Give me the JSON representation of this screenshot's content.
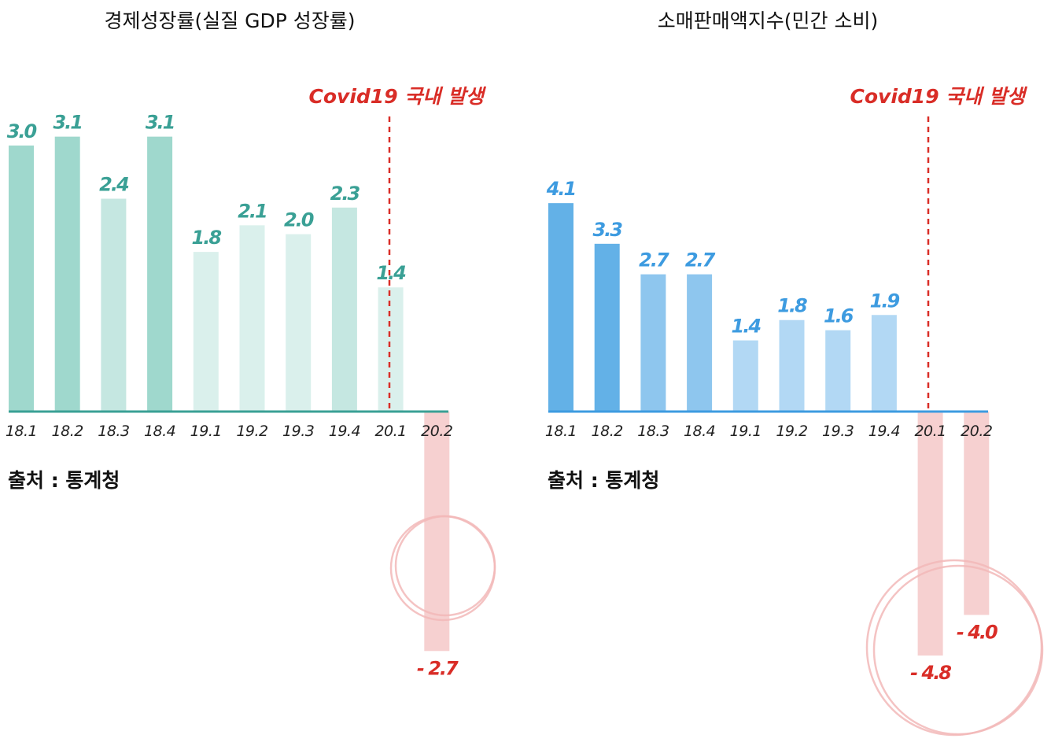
{
  "source_text": "출처 : 통계청",
  "covid_label": "Covid19 국내 발생",
  "colors": {
    "gdp_dark": "#9fd8cd",
    "gdp_mid": "#c5e7e1",
    "gdp_light": "#daf0ec",
    "gdp_label": "#3aa095",
    "retail_dark": "#63b1e7",
    "retail_mid": "#8ec6ee",
    "retail_light": "#b2d8f4",
    "retail_label": "#3d9be0",
    "negative_bar": "#f6d0d0",
    "negative_label": "#d92d27",
    "covid_line": "#d92d27"
  },
  "chart_data": [
    {
      "type": "bar",
      "title": "경제성장률(실질 GDP 성장률)",
      "categories": [
        "18.1",
        "18.2",
        "18.3",
        "18.4",
        "19.1",
        "19.2",
        "19.3",
        "19.4",
        "20.1",
        "20.2"
      ],
      "values": [
        3.0,
        3.1,
        2.4,
        3.1,
        1.8,
        2.1,
        2.0,
        2.3,
        1.4,
        -2.7
      ],
      "value_labels": [
        "3.0",
        "3.1",
        "2.4",
        "3.1",
        "1.8",
        "2.1",
        "2.0",
        "2.3",
        "1.4",
        "- 2.7"
      ],
      "bar_shades": [
        "dark",
        "dark",
        "mid",
        "dark",
        "light",
        "light",
        "light",
        "mid",
        "light",
        "negative"
      ],
      "covid_marker_between": [
        "20.1",
        "20.1"
      ],
      "highlighted": [
        "20.2"
      ],
      "annotation": "Covid19 국내 발생",
      "source": "출처 : 통계청"
    },
    {
      "type": "bar",
      "title": "소매판매액지수(민간 소비)",
      "categories": [
        "18.1",
        "18.2",
        "18.3",
        "18.4",
        "19.1",
        "19.2",
        "19.3",
        "19.4",
        "20.1",
        "20.2"
      ],
      "values": [
        4.1,
        3.3,
        2.7,
        2.7,
        1.4,
        1.8,
        1.6,
        1.9,
        -4.8,
        -4.0
      ],
      "value_labels": [
        "4.1",
        "3.3",
        "2.7",
        "2.7",
        "1.4",
        "1.8",
        "1.6",
        "1.9",
        "- 4.8",
        "- 4.0"
      ],
      "bar_shades": [
        "dark",
        "dark",
        "mid",
        "mid",
        "light",
        "light",
        "light",
        "light",
        "negative",
        "negative"
      ],
      "highlighted": [
        "20.1",
        "20.2"
      ],
      "annotation": "Covid19 국내 발생",
      "source": "출처 : 통계청"
    }
  ]
}
